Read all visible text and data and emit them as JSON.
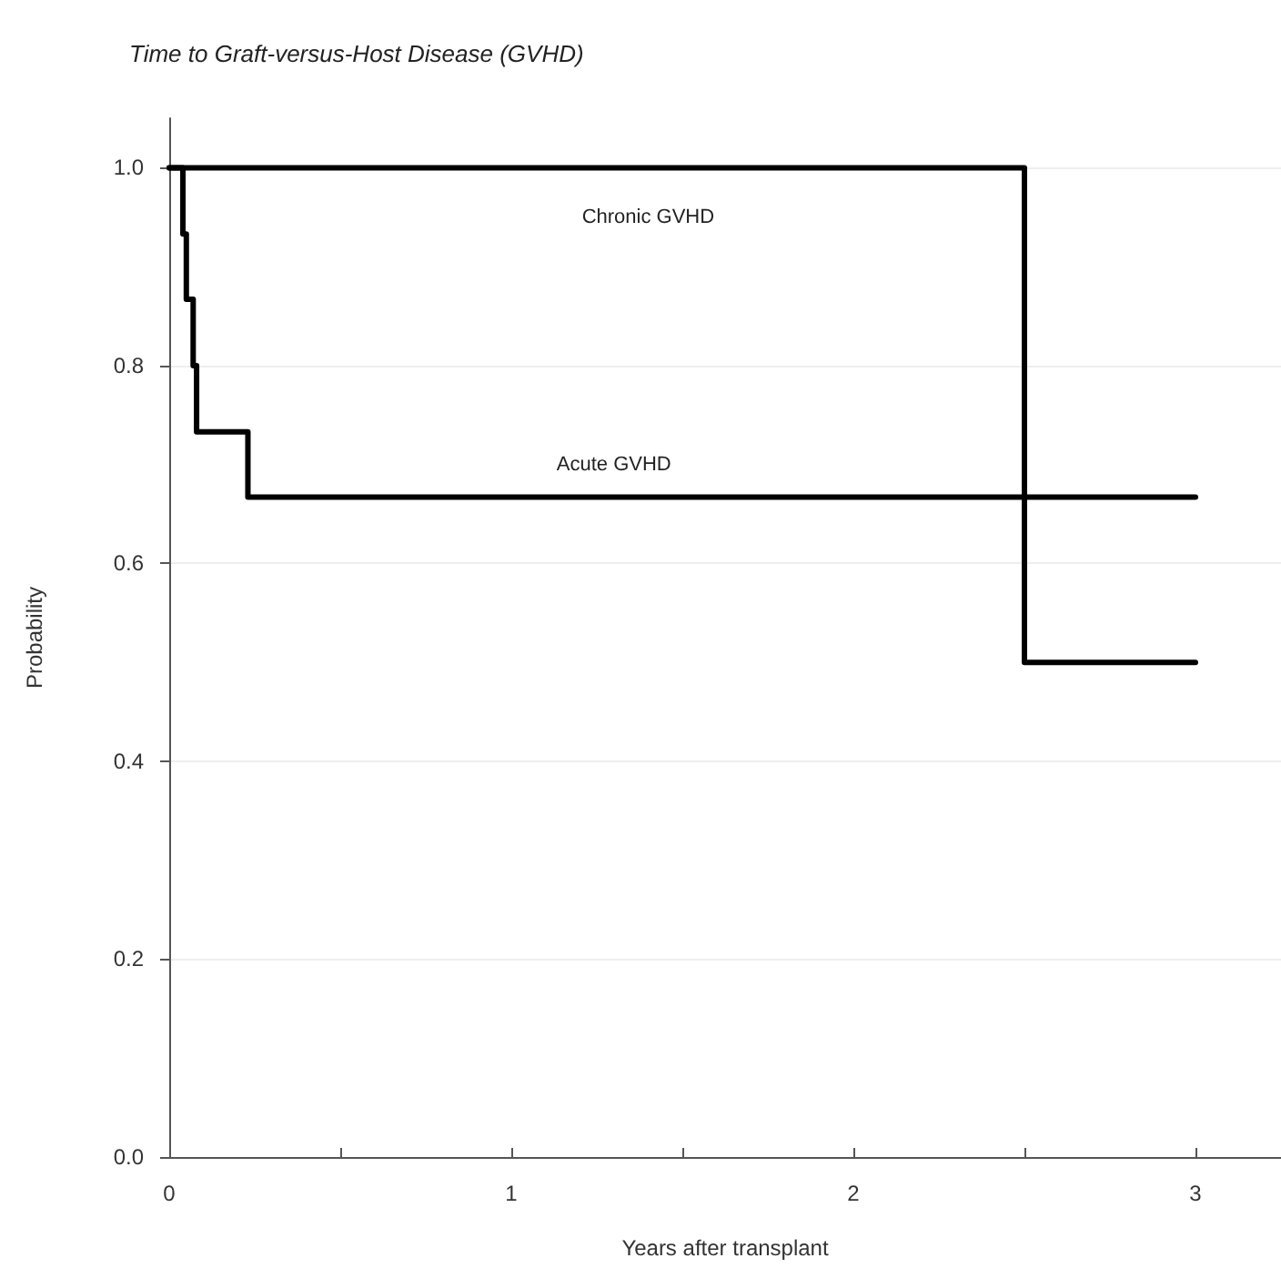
{
  "chart_data": {
    "type": "step",
    "title": "Time to Graft-versus-Host Disease (GVHD)",
    "xlabel": "Years after transplant",
    "ylabel": "Probability",
    "series": [
      {
        "name": "Chronic GVHD",
        "color": "#000000",
        "x": [
          0,
          2.5,
          3.0
        ],
        "values": [
          1.0,
          0.5,
          0.5
        ]
      },
      {
        "name": "Acute GVHD",
        "color": "#000000",
        "x": [
          0,
          0.04,
          0.05,
          0.07,
          0.08,
          0.23,
          3.0
        ],
        "values": [
          1.0,
          0.933,
          0.867,
          0.8,
          0.733,
          0.667,
          0.667
        ]
      }
    ],
    "xlim": [
      0,
      3.25
    ],
    "xticks": [
      0,
      {
        "value": 0.5,
        "label": null
      },
      1,
      {
        "value": 1.5,
        "label": null
      },
      2,
      {
        "value": 2.5,
        "label": null
      },
      3
    ],
    "ylim": [
      0,
      1.05
    ],
    "yticks": [
      {
        "value": 0,
        "label": "0.0"
      },
      0.2,
      0.4,
      0.6,
      0.8,
      {
        "value": 1,
        "label": "1.0"
      }
    ],
    "grid": "y",
    "legend": false,
    "marker": "none",
    "line_style": "solid"
  }
}
